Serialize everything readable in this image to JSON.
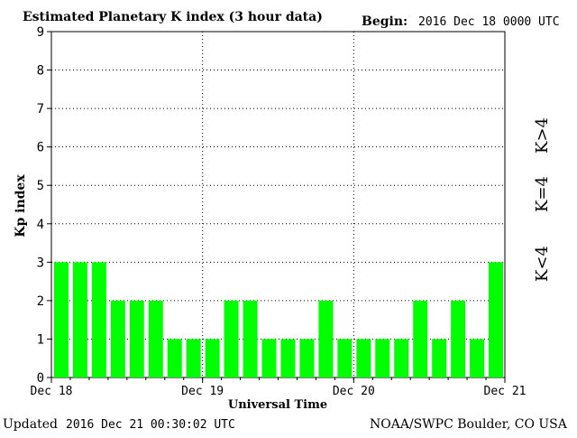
{
  "header": {
    "title": "Estimated Planetary K index (3 hour data)",
    "begin_label": "Begin:",
    "begin_value": "2016 Dec 18 0000 UTC"
  },
  "footer": {
    "updated_label": "Updated",
    "updated_value": "2016 Dec 21 00:30:02 UTC",
    "source": "NOAA/SWPC Boulder, CO USA"
  },
  "legend": {
    "high": "K>4",
    "mid": "K=4",
    "low": "K<4"
  },
  "colors": {
    "bar_low": "#00ff00",
    "bar_mid": "#ffd700",
    "bar_high": "#ff2200",
    "legend_high": "#ff3300",
    "legend_mid": "#ffcc00",
    "legend_low": "#33cc33"
  },
  "chart_data": {
    "type": "bar",
    "title": "Estimated Planetary K index (3 hour data)",
    "xlabel": "Universal Time",
    "ylabel": "Kp index",
    "ylim": [
      0,
      9
    ],
    "yticks": [
      0,
      1,
      2,
      3,
      4,
      5,
      6,
      7,
      8,
      9
    ],
    "xticks": [
      "Dec 18",
      "Dec 19",
      "Dec 20",
      "Dec 21"
    ],
    "grid": true,
    "values": [
      3,
      3,
      3,
      2,
      2,
      2,
      1,
      1,
      1,
      2,
      2,
      1,
      1,
      1,
      2,
      1,
      1,
      1,
      1,
      2,
      1,
      2,
      1,
      3
    ]
  }
}
